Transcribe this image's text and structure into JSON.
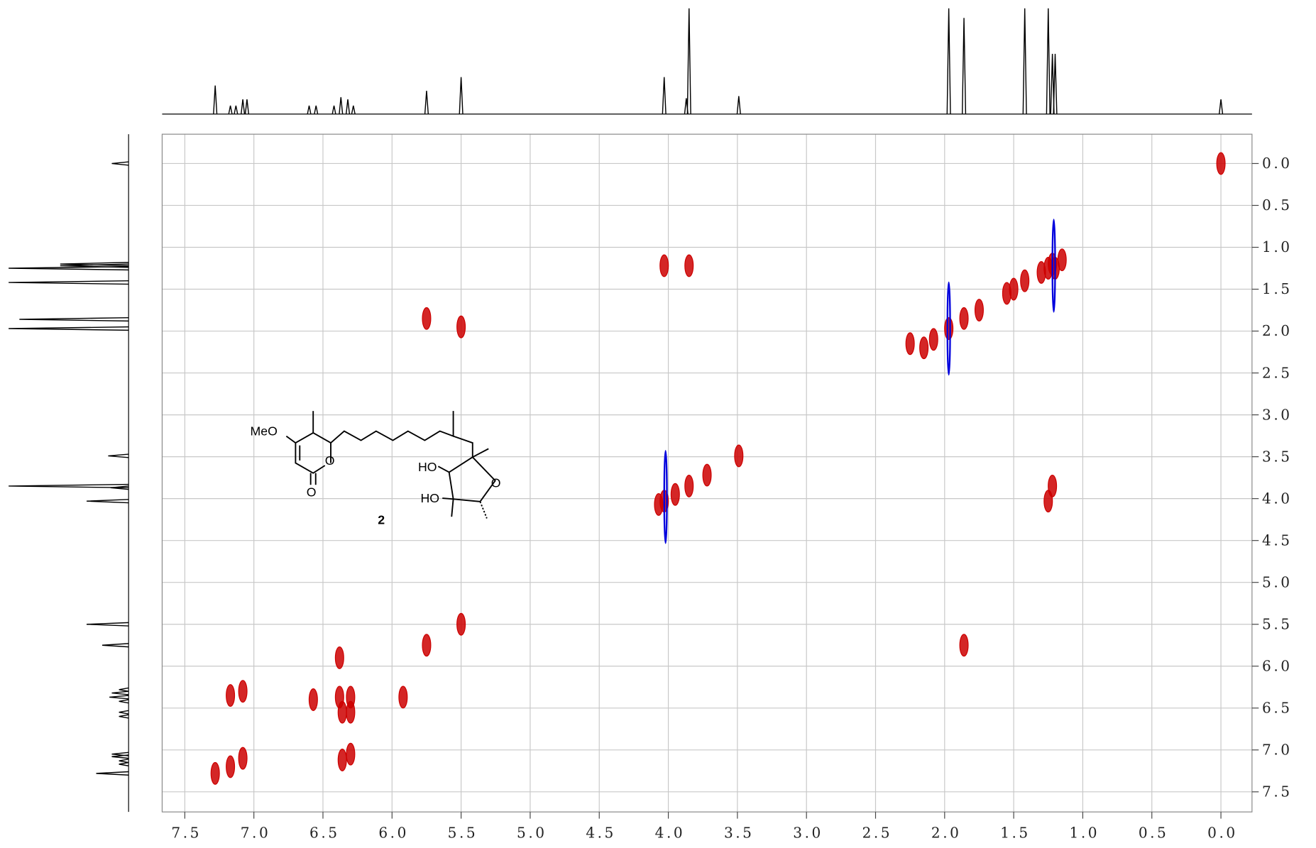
{
  "chart_data": {
    "type": "scatter",
    "xlim": [
      7.664,
      -0.225
    ],
    "ylim": [
      -0.35,
      7.74
    ],
    "xticks": [
      7.5,
      {
        "value": 7,
        "label": "7.0"
      },
      6.5,
      {
        "value": 6,
        "label": "6.0"
      },
      5.5,
      {
        "value": 5,
        "label": "5.0"
      },
      4.5,
      {
        "value": 4,
        "label": "4.0"
      },
      3.5,
      {
        "value": 3,
        "label": "3.0"
      },
      2.5,
      {
        "value": 2,
        "label": "2.0"
      },
      1.5,
      {
        "value": 1,
        "label": "1.0"
      },
      0.5,
      {
        "value": 0,
        "label": "0.0"
      }
    ],
    "yticks": [
      {
        "value": 0,
        "label": "0.0"
      },
      0.5,
      {
        "value": 1,
        "label": "1.0"
      },
      1.5,
      {
        "value": 2,
        "label": "2.0"
      },
      2.5,
      {
        "value": 3,
        "label": "3.0"
      },
      3.5,
      {
        "value": 4,
        "label": "4.0"
      },
      4.5,
      {
        "value": 5,
        "label": "5.0"
      },
      5.5,
      {
        "value": 6,
        "label": "6.0"
      },
      6.5,
      {
        "value": 7,
        "label": "7.0"
      },
      7.5
    ],
    "grid": true,
    "series": [
      {
        "color": "#cc0000",
        "x": [
          0.0,
          1.15,
          1.2,
          1.22,
          1.25,
          1.3,
          1.42,
          1.5,
          1.55,
          1.75,
          1.86,
          1.97,
          2.08,
          2.15,
          2.25,
          3.85,
          4.03,
          5.75,
          5.5,
          3.49,
          3.72,
          3.85,
          3.95,
          4.03,
          4.07,
          1.22,
          1.25,
          5.5,
          5.75,
          1.86,
          5.92,
          6.38,
          7.17,
          7.08,
          6.57,
          6.38,
          6.3,
          6.36,
          6.3,
          7.28,
          7.17,
          7.08,
          6.36,
          6.3
        ],
        "values": [
          0.0,
          1.15,
          1.25,
          1.2,
          1.25,
          1.3,
          1.4,
          1.5,
          1.55,
          1.75,
          1.85,
          1.97,
          2.1,
          2.2,
          2.15,
          1.22,
          1.22,
          1.85,
          1.95,
          3.49,
          3.72,
          3.85,
          3.95,
          4.03,
          4.07,
          3.85,
          4.03,
          5.5,
          5.75,
          5.75,
          6.37,
          5.9,
          6.35,
          6.3,
          6.4,
          6.37,
          6.37,
          6.55,
          6.55,
          7.28,
          7.2,
          7.1,
          7.12,
          7.05
        ]
      },
      {
        "color": "#0000dd",
        "x": [
          1.97,
          4.02,
          1.21
        ],
        "values": [
          1.97,
          3.98,
          1.22
        ]
      }
    ],
    "projection": {
      "color": "#000000",
      "x": [
        7.28,
        7.17,
        7.13,
        7.08,
        7.05,
        6.6,
        6.55,
        6.42,
        6.37,
        6.32,
        6.28,
        5.75,
        5.5,
        4.03,
        3.87,
        3.85,
        3.49,
        1.97,
        1.86,
        1.42,
        1.25,
        1.22,
        1.2,
        0.0
      ],
      "values": [
        27,
        8,
        8,
        14,
        14,
        8,
        8,
        8,
        16,
        14,
        8,
        22,
        35,
        35,
        15,
        100,
        17,
        100,
        91,
        100,
        100,
        57,
        57,
        14
      ]
    },
    "annotations": [
      "MeO",
      "O",
      "O",
      "HO",
      "HO",
      "O",
      "2"
    ]
  }
}
